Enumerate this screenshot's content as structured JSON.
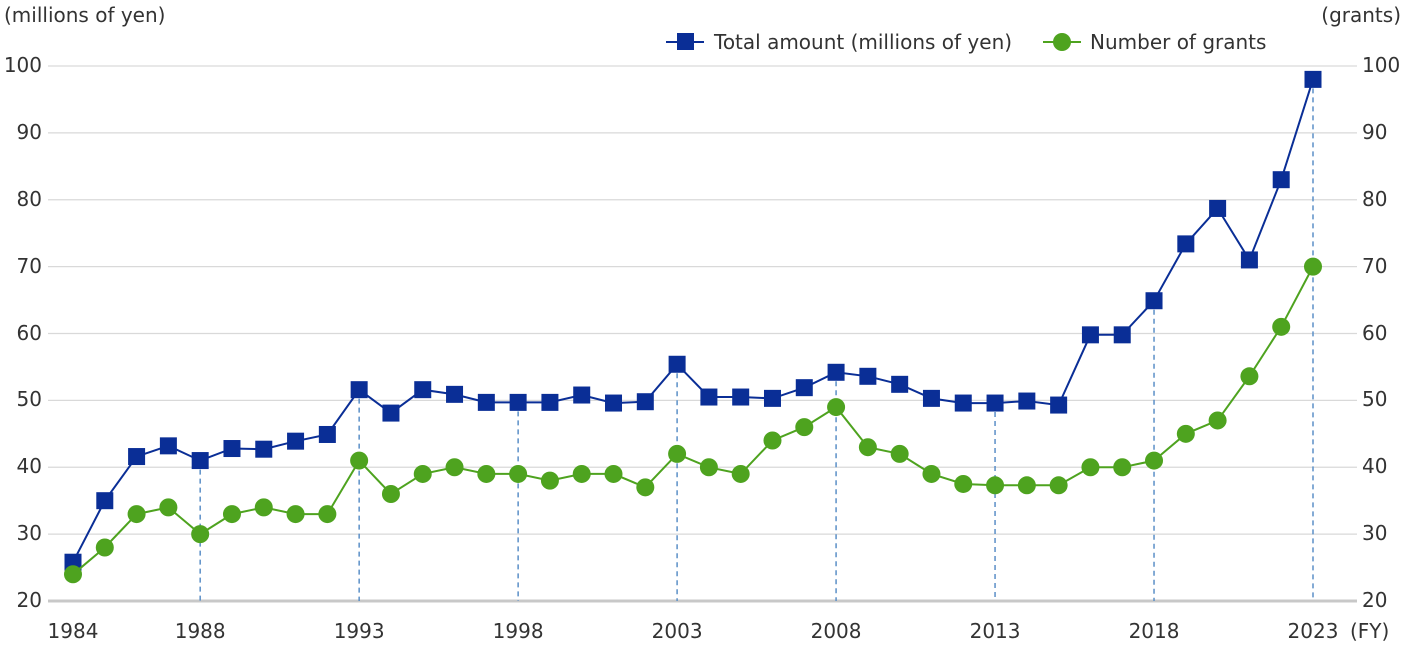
{
  "chart_data": {
    "type": "line",
    "title": "",
    "y_left_label": "(millions of yen)",
    "y_right_label": "(grants)",
    "x_unit": "(FY)",
    "x_tick_labels": [
      "1984",
      "1988",
      "1993",
      "1998",
      "2003",
      "2008",
      "2013",
      "2018",
      "2023"
    ],
    "y_ticks": [
      20,
      30,
      40,
      50,
      60,
      70,
      80,
      90,
      100
    ],
    "ylim_left": [
      20,
      100
    ],
    "ylim_right": [
      20,
      100
    ],
    "xlim": [
      1984,
      2023
    ],
    "grid": true,
    "legend_position": "top-right",
    "colors": {
      "amount": "#0a2e96",
      "grants": "#4ea31f",
      "guide": "#5b8fc7",
      "grid": "#d9d9d9"
    },
    "x": [
      1984,
      1985,
      1986,
      1987,
      1988,
      1989,
      1990,
      1991,
      1992,
      1993,
      1994,
      1995,
      1996,
      1997,
      1998,
      1999,
      2000,
      2001,
      2002,
      2003,
      2004,
      2005,
      2006,
      2007,
      2008,
      2009,
      2010,
      2011,
      2012,
      2013,
      2014,
      2015,
      2016,
      2017,
      2018,
      2019,
      2020,
      2021,
      2022,
      2023
    ],
    "series": [
      {
        "name": "Total amount (millions of yen)",
        "axis": "left",
        "marker": "square",
        "values": [
          25.8,
          35,
          41.6,
          43.2,
          41,
          42.8,
          42.7,
          43.9,
          44.9,
          51.6,
          48.1,
          51.6,
          50.9,
          49.7,
          49.7,
          49.7,
          50.8,
          49.6,
          49.8,
          55.4,
          50.5,
          50.5,
          50.3,
          51.9,
          54.2,
          53.6,
          52.4,
          50.3,
          49.6,
          49.6,
          49.9,
          49.3,
          59.8,
          59.8,
          64.9,
          73.4,
          78.7,
          71,
          83,
          98
        ]
      },
      {
        "name": "Number of grants",
        "axis": "right",
        "marker": "circle",
        "values": [
          24,
          28,
          33,
          34,
          30,
          33,
          34,
          33,
          33,
          41,
          36,
          39,
          40,
          39,
          39,
          38,
          39,
          39,
          37,
          42,
          40,
          39,
          44,
          46,
          49,
          43,
          42,
          39,
          37.5,
          37.3,
          37.3,
          37.3,
          40,
          40,
          41,
          45,
          47,
          53.6,
          61,
          70
        ]
      }
    ],
    "guide_years": [
      1988,
      1993,
      1998,
      2003,
      2008,
      2013,
      2018,
      2023
    ]
  }
}
